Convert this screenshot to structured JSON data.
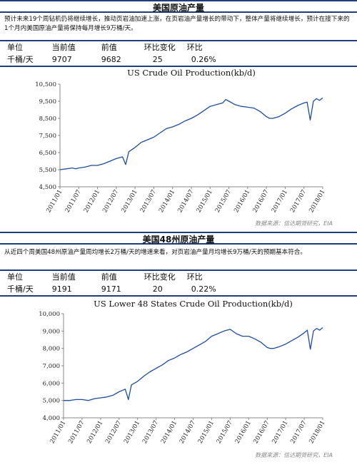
{
  "sections": [
    {
      "header": "美国原油产量",
      "description": "预计未来19个周钻机仍将继续增长，推动页岩油加速上涨，在页岩油产量增长的带动下，整体产量将继续增长，预计在接下来的1个月内美国原油产量将保持每月增长9万桶/天。",
      "stats": {
        "headers": [
          "单位",
          "当前值",
          "前值",
          "环比变化",
          "环比"
        ],
        "row": [
          "千桶/天",
          "9707",
          "9682",
          "25",
          "0.26%"
        ]
      },
      "source": "数据来源：信达期货研究，EIA"
    },
    {
      "header": "美国48州原油产量",
      "description": "从近四个周美国48州原油产量周均增长2万桶/天的增速来看，对页岩油产量月均增长9万桶/天的预期基本符合。",
      "stats": {
        "headers": [
          "单位",
          "当前值",
          "前值",
          "环比变化",
          "环比"
        ],
        "row": [
          "千桶/天",
          "9191",
          "9171",
          "20",
          "0.22%"
        ]
      },
      "source": "数据来源：信达期货研究，EIA"
    }
  ],
  "chart_data": [
    {
      "type": "line",
      "title": "US Crude Oil Production(kb/d)",
      "xlabel": "",
      "ylabel": "",
      "ylim": [
        4500,
        10500
      ],
      "y_ticks": [
        4500,
        5500,
        6500,
        7500,
        8500,
        9500,
        10500
      ],
      "y_tick_labels": [
        "4,500",
        "5,500",
        "6,500",
        "7,500",
        "8,500",
        "9,500",
        "10,500"
      ],
      "x_ticks": [
        "2011/01",
        "2011/07",
        "2012/01",
        "2012/07",
        "2013/01",
        "2013/07",
        "2014/01",
        "2014/07",
        "2015/01",
        "2015/07",
        "2016/01",
        "2016/07",
        "2017/01",
        "2017/07",
        "2018/01"
      ],
      "grid": false,
      "line_color": "#1f4e9c",
      "series": [
        {
          "x": [
            "2011/01",
            "2011/03",
            "2011/05",
            "2011/06",
            "2011/07",
            "2011/09",
            "2011/11",
            "2012/01",
            "2012/03",
            "2012/05",
            "2012/07",
            "2012/09",
            "2012/10",
            "2012/11",
            "2013/01",
            "2013/03",
            "2013/05",
            "2013/07",
            "2013/09",
            "2013/11",
            "2014/01",
            "2014/03",
            "2014/05",
            "2014/07",
            "2014/09",
            "2014/11",
            "2015/01",
            "2015/03",
            "2015/05",
            "2015/06",
            "2015/07",
            "2015/09",
            "2015/11",
            "2016/01",
            "2016/03",
            "2016/05",
            "2016/07",
            "2016/08",
            "2016/09",
            "2016/11",
            "2017/01",
            "2017/03",
            "2017/05",
            "2017/07",
            "2017/08",
            "2017/09",
            "2017/10",
            "2017/11",
            "2017/12",
            "2018/01"
          ],
          "values": [
            5500,
            5550,
            5600,
            5550,
            5600,
            5650,
            5750,
            5750,
            5850,
            6000,
            6150,
            6250,
            5800,
            6550,
            6800,
            7100,
            7250,
            7400,
            7650,
            7900,
            8000,
            8150,
            8350,
            8500,
            8700,
            8950,
            9200,
            9300,
            9400,
            9600,
            9500,
            9300,
            9200,
            9150,
            9100,
            8900,
            8600,
            8500,
            8500,
            8600,
            8800,
            9050,
            9250,
            9400,
            9450,
            8400,
            9500,
            9650,
            9550,
            9700
          ]
        }
      ]
    },
    {
      "type": "line",
      "title": "US Lower 48 States Crude Oil Production(kb/d)",
      "xlabel": "",
      "ylabel": "",
      "ylim": [
        4000,
        10000
      ],
      "y_ticks": [
        4000,
        5000,
        6000,
        7000,
        8000,
        9000,
        10000
      ],
      "y_tick_labels": [
        "4,000",
        "5,000",
        "6,000",
        "7,000",
        "8,000",
        "9,000",
        "10,000"
      ],
      "x_ticks": [
        "2011/01",
        "2011/07",
        "2012/01",
        "2012/07",
        "2013/01",
        "2013/07",
        "2014/01",
        "2014/07",
        "2015/01",
        "2015/07",
        "2016/01",
        "2016/07",
        "2017/01",
        "2017/07",
        "2018/01"
      ],
      "grid": false,
      "line_color": "#1f4e9c",
      "series": [
        {
          "x": [
            "2011/01",
            "2011/03",
            "2011/05",
            "2011/07",
            "2011/09",
            "2011/11",
            "2012/01",
            "2012/03",
            "2012/05",
            "2012/07",
            "2012/09",
            "2012/10",
            "2012/11",
            "2013/01",
            "2013/03",
            "2013/05",
            "2013/07",
            "2013/09",
            "2013/11",
            "2014/01",
            "2014/03",
            "2014/05",
            "2014/07",
            "2014/09",
            "2014/11",
            "2015/01",
            "2015/03",
            "2015/05",
            "2015/07",
            "2015/09",
            "2015/11",
            "2016/01",
            "2016/03",
            "2016/05",
            "2016/07",
            "2016/08",
            "2016/09",
            "2016/11",
            "2017/01",
            "2017/03",
            "2017/05",
            "2017/07",
            "2017/08",
            "2017/09",
            "2017/10",
            "2017/11",
            "2017/12",
            "2018/01"
          ],
          "values": [
            5000,
            5000,
            5050,
            5050,
            5000,
            5100,
            5150,
            5200,
            5300,
            5500,
            5650,
            5050,
            5900,
            6100,
            6400,
            6650,
            6850,
            7050,
            7300,
            7450,
            7650,
            7800,
            8000,
            8200,
            8400,
            8700,
            8850,
            9000,
            9100,
            8850,
            8700,
            8700,
            8550,
            8350,
            8050,
            8000,
            8000,
            8100,
            8250,
            8450,
            8650,
            8900,
            9050,
            7950,
            9000,
            9150,
            9050,
            9200
          ]
        }
      ]
    }
  ]
}
